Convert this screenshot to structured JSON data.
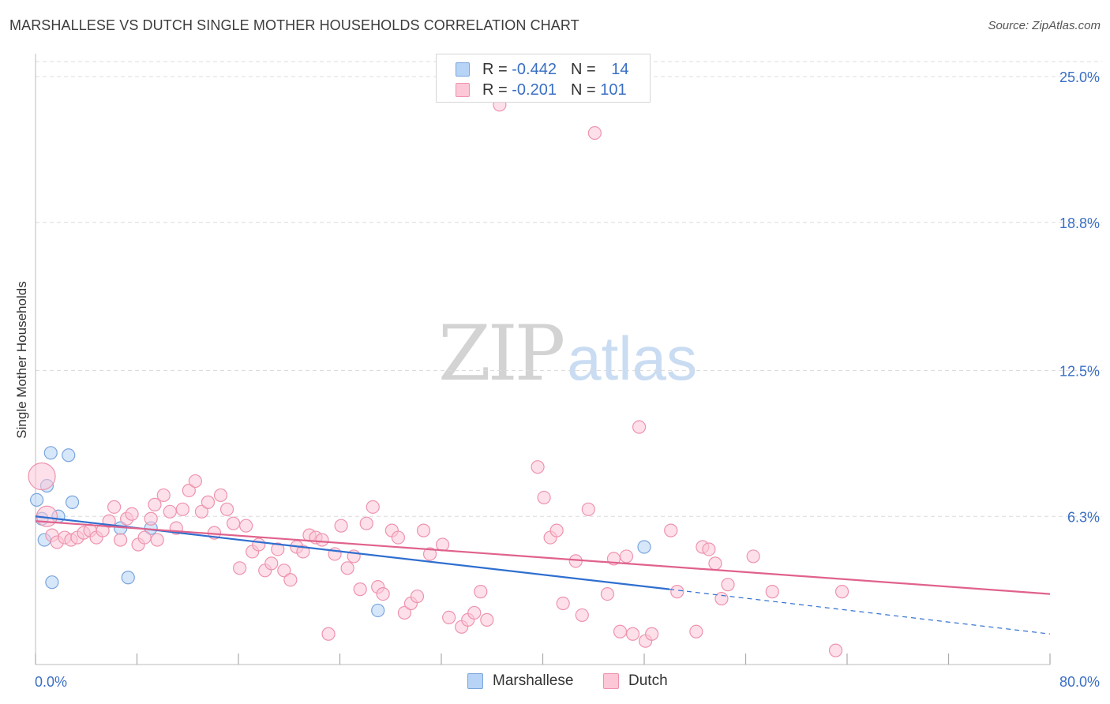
{
  "header": {
    "title": "MARSHALLESE VS DUTCH SINGLE MOTHER HOUSEHOLDS CORRELATION CHART",
    "source": "Source: ZipAtlas.com"
  },
  "watermark": {
    "zip": "ZIP",
    "atlas": "atlas"
  },
  "legend": {
    "rows": [
      {
        "r_label": "R = ",
        "r_value": "-0.442",
        "n_label": "N = ",
        "n_value": "14",
        "color": "#b7d3f5",
        "border": "#7aa5dd"
      },
      {
        "r_label": "R = ",
        "r_value": "-0.201",
        "n_label": "N = ",
        "n_value": "101",
        "color": "#fcc7d7",
        "border": "#ee93ad"
      }
    ]
  },
  "bottom_legend": {
    "items": [
      {
        "label": "Marshallese",
        "color": "#b7d3f5",
        "border": "#7aa5dd"
      },
      {
        "label": "Dutch",
        "color": "#fcc7d7",
        "border": "#ee93ad"
      }
    ]
  },
  "chart_data": {
    "type": "scatter",
    "title": "MARSHALLESE VS DUTCH SINGLE MOTHER HOUSEHOLDS CORRELATION CHART",
    "xlabel": "",
    "ylabel": "Single Mother Households",
    "xlim": [
      0,
      80
    ],
    "ylim": [
      0,
      26.3
    ],
    "x_tick_labels": [
      "0.0%",
      "80.0%"
    ],
    "y_ticks": [
      6.3,
      12.5,
      18.8,
      25.0
    ],
    "y_tick_labels": [
      "6.3%",
      "12.5%",
      "18.8%",
      "25.0%"
    ],
    "grid": true,
    "legend_position": "top-center",
    "series": [
      {
        "name": "Marshallese",
        "color": "#b7d3f5",
        "stroke": "#7aa5dd",
        "trend_color": "#2f6fcf",
        "trend": {
          "x0": 0,
          "y0": 6.3,
          "x1": 50,
          "y1": 3.2,
          "dashed_to_x": 80,
          "dashed_to_y": 1.3
        },
        "points": [
          [
            0.1,
            7.0
          ],
          [
            0.5,
            6.2
          ],
          [
            0.7,
            5.3
          ],
          [
            0.9,
            7.6
          ],
          [
            1.2,
            9.0
          ],
          [
            1.3,
            3.5
          ],
          [
            1.8,
            6.3
          ],
          [
            2.6,
            8.9
          ],
          [
            2.9,
            6.9
          ],
          [
            6.7,
            5.8
          ],
          [
            7.3,
            3.7
          ],
          [
            9.1,
            5.8
          ],
          [
            27.0,
            2.3
          ],
          [
            48.0,
            5.0
          ]
        ]
      },
      {
        "name": "Dutch",
        "color": "#fcc7d7",
        "stroke": "#ee93ad",
        "trend_color": "#e0628c",
        "trend": {
          "x0": 0,
          "y0": 6.1,
          "x1": 80,
          "y1": 3.0
        },
        "points": [
          [
            0.5,
            8.0
          ],
          [
            0.9,
            6.3
          ],
          [
            1.3,
            5.5
          ],
          [
            1.7,
            5.2
          ],
          [
            2.3,
            5.4
          ],
          [
            2.8,
            5.3
          ],
          [
            3.3,
            5.4
          ],
          [
            3.8,
            5.6
          ],
          [
            4.3,
            5.7
          ],
          [
            4.8,
            5.4
          ],
          [
            5.3,
            5.7
          ],
          [
            5.8,
            6.1
          ],
          [
            6.2,
            6.7
          ],
          [
            6.7,
            5.3
          ],
          [
            7.2,
            6.2
          ],
          [
            7.6,
            6.4
          ],
          [
            8.1,
            5.1
          ],
          [
            8.6,
            5.4
          ],
          [
            9.1,
            6.2
          ],
          [
            9.6,
            5.3
          ],
          [
            9.4,
            6.8
          ],
          [
            10.1,
            7.2
          ],
          [
            10.6,
            6.5
          ],
          [
            11.1,
            5.8
          ],
          [
            11.6,
            6.6
          ],
          [
            12.1,
            7.4
          ],
          [
            12.6,
            7.8
          ],
          [
            13.1,
            6.5
          ],
          [
            13.6,
            6.9
          ],
          [
            14.1,
            5.6
          ],
          [
            14.6,
            7.2
          ],
          [
            15.1,
            6.6
          ],
          [
            15.6,
            6.0
          ],
          [
            16.1,
            4.1
          ],
          [
            16.6,
            5.9
          ],
          [
            17.1,
            4.8
          ],
          [
            17.6,
            5.1
          ],
          [
            18.1,
            4.0
          ],
          [
            18.6,
            4.3
          ],
          [
            19.1,
            4.9
          ],
          [
            19.6,
            4.0
          ],
          [
            20.1,
            3.6
          ],
          [
            20.6,
            5.0
          ],
          [
            21.1,
            4.8
          ],
          [
            21.6,
            5.5
          ],
          [
            22.1,
            5.4
          ],
          [
            22.6,
            5.3
          ],
          [
            23.1,
            1.3
          ],
          [
            23.6,
            4.7
          ],
          [
            24.1,
            5.9
          ],
          [
            24.6,
            4.1
          ],
          [
            25.1,
            4.6
          ],
          [
            25.6,
            3.2
          ],
          [
            26.1,
            6.0
          ],
          [
            26.6,
            6.7
          ],
          [
            27.0,
            3.3
          ],
          [
            27.4,
            3.0
          ],
          [
            28.1,
            5.7
          ],
          [
            28.6,
            5.4
          ],
          [
            29.1,
            2.2
          ],
          [
            29.6,
            2.6
          ],
          [
            30.1,
            2.9
          ],
          [
            30.6,
            5.7
          ],
          [
            31.1,
            4.7
          ],
          [
            32.1,
            5.1
          ],
          [
            32.6,
            2.0
          ],
          [
            33.6,
            1.6
          ],
          [
            34.1,
            1.9
          ],
          [
            34.6,
            2.2
          ],
          [
            35.1,
            3.1
          ],
          [
            35.6,
            1.9
          ],
          [
            36.6,
            23.8
          ],
          [
            39.6,
            8.4
          ],
          [
            40.1,
            7.1
          ],
          [
            40.6,
            5.4
          ],
          [
            41.1,
            5.7
          ],
          [
            41.6,
            2.6
          ],
          [
            42.6,
            4.4
          ],
          [
            43.1,
            2.1
          ],
          [
            43.6,
            6.6
          ],
          [
            44.1,
            22.6
          ],
          [
            45.1,
            3.0
          ],
          [
            45.6,
            4.5
          ],
          [
            46.1,
            1.4
          ],
          [
            46.6,
            4.6
          ],
          [
            47.1,
            1.3
          ],
          [
            47.6,
            10.1
          ],
          [
            48.1,
            1.0
          ],
          [
            48.6,
            1.3
          ],
          [
            50.1,
            5.7
          ],
          [
            50.6,
            3.1
          ],
          [
            52.1,
            1.4
          ],
          [
            52.6,
            5.0
          ],
          [
            53.1,
            4.9
          ],
          [
            53.6,
            4.3
          ],
          [
            54.1,
            2.8
          ],
          [
            54.6,
            3.4
          ],
          [
            56.6,
            4.6
          ],
          [
            58.1,
            3.1
          ],
          [
            63.1,
            0.6
          ],
          [
            63.6,
            3.1
          ]
        ]
      }
    ]
  }
}
